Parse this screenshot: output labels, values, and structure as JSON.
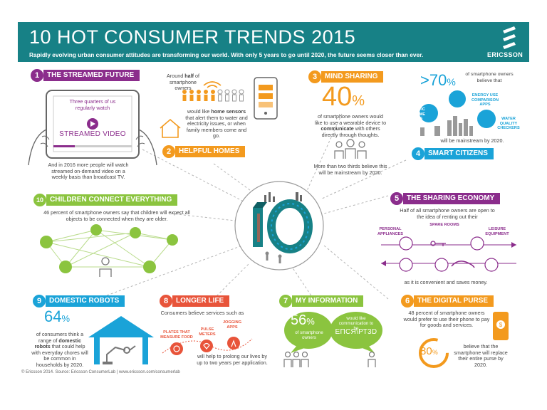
{
  "header": {
    "title": "10 HOT CONSUMER TRENDS 2015",
    "subtitle": "Rapidly evolving urban consumer attitudes are transforming our world. With only 5 years to go until 2020, the future seems closer than ever.",
    "logo_text": "ERICSSON"
  },
  "colors": {
    "header_bg": "#178186",
    "purple": "#8b2d8c",
    "orange": "#f39a1e",
    "blue": "#1aa3d8",
    "green": "#8bc43f",
    "red": "#e8543a",
    "teal": "#178186"
  },
  "trends": {
    "t1": {
      "num": "1",
      "title": "THE STREAMED FUTURE",
      "tablet_text": "Three quarters of us regularly watch",
      "tablet_label": "STREAMED VIDEO",
      "text": "And in 2016 more people will watch streamed on-demand video on a weekly basis than broadcast TV."
    },
    "t2": {
      "num": "2",
      "title": "HELPFUL HOMES",
      "intro_1": "Around ",
      "intro_b": "half",
      "intro_2": " of smartphone owners",
      "text_1": "would like ",
      "text_b": "home sensors",
      "text_2": " that alert them to water and electricity issues, or when family members come and go."
    },
    "t3": {
      "num": "3",
      "title": "MIND SHARING",
      "big_number": "40",
      "big_unit": "%",
      "text_1": "of smartphone owners would like to use a wearable device to ",
      "text_b": "communicate",
      "text_2": " with others directly through thoughts.",
      "text_bottom": "More than two thirds believe this will be mainstream by 2020."
    },
    "t4": {
      "num": "4",
      "title": "SMART CITIZENS",
      "big_number": ">70",
      "big_unit": "%",
      "intro": "of smartphone owners believe that",
      "app_1": "ENERGY USE COMPARISON APPS",
      "app_2": "TRAFFIC VOLUME MAPS",
      "app_3": "WATER QUALITY CHECKERS",
      "text": "will be mainstream by 2020."
    },
    "t5": {
      "num": "5",
      "title": "THE SHARING ECONOMY",
      "text": "Half of all smartphone owners are open to the idea of renting out their",
      "item_1": "PERSONAL APPLIANCES",
      "item_2": "SPARE ROOMS",
      "item_3": "LEISURE EQUIPMENT",
      "text_2": "as it is convenient and saves money."
    },
    "t6": {
      "num": "6",
      "title": "THE DIGITAL PURSE",
      "text": "48 percent of smartphone owners would prefer to use their phone to pay for goods and services.",
      "big_number": "80",
      "big_unit": "%",
      "text_2": "believe that the smartphone will replace their entire purse by 2020."
    },
    "t7": {
      "num": "7",
      "title": "MY INFORMATION",
      "big_number": "56",
      "big_unit": "%",
      "bubble_text": "of smartphone owners",
      "text": "would like communication to be",
      "glyph": "ЕПСЯ\\РТ3D"
    },
    "t8": {
      "num": "8",
      "title": "LONGER LIFE",
      "text": "Consumers believe services such as",
      "item_1": "PLATES THAT MEASURE FOOD",
      "item_2": "PULSE METERS",
      "item_3": "JOGGING APPS",
      "text_2": "will help to prolong our lives by up to two years per application."
    },
    "t9": {
      "num": "9",
      "title": "DOMESTIC ROBOTS",
      "big_number": "64",
      "big_unit": "%",
      "text_1": "of consumers think a range of ",
      "text_b": "domestic robots",
      "text_2": " that could help with everyday chores will be common in households by 2020."
    },
    "t10": {
      "num": "10",
      "title": "CHILDREN CONNECT EVERYTHING",
      "text": "46 percent of smartphone owners say that children will expect all objects to be connected when they are older."
    }
  },
  "footer": "© Ericsson 2014. Source: Ericsson ConsumerLab | www.ericsson.com/consumerlab"
}
